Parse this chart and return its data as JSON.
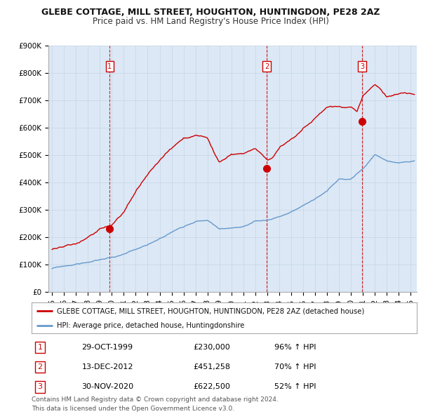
{
  "title": "GLEBE COTTAGE, MILL STREET, HOUGHTON, HUNTINGDON, PE28 2AZ",
  "subtitle": "Price paid vs. HM Land Registry's House Price Index (HPI)",
  "ylim": [
    0,
    900000
  ],
  "yticks": [
    0,
    100000,
    200000,
    300000,
    400000,
    500000,
    600000,
    700000,
    800000,
    900000
  ],
  "ytick_labels": [
    "£0",
    "£100K",
    "£200K",
    "£300K",
    "£400K",
    "£500K",
    "£600K",
    "£700K",
    "£800K",
    "£900K"
  ],
  "xlim_start": 1994.7,
  "xlim_end": 2025.5,
  "x_tick_years": [
    1995,
    1996,
    1997,
    1998,
    1999,
    2000,
    2001,
    2002,
    2003,
    2004,
    2005,
    2006,
    2007,
    2008,
    2009,
    2010,
    2011,
    2012,
    2013,
    2014,
    2015,
    2016,
    2017,
    2018,
    2019,
    2020,
    2021,
    2022,
    2023,
    2024,
    2025
  ],
  "sale_color": "#cc0000",
  "hpi_color": "#6699cc",
  "vline_color": "#cc0000",
  "grid_color": "#c8d8e8",
  "chart_bg": "#dce8f5",
  "background_color": "#ffffff",
  "legend_label_sale": "GLEBE COTTAGE, MILL STREET, HOUGHTON, HUNTINGDON, PE28 2AZ (detached house)",
  "legend_label_hpi": "HPI: Average price, detached house, Huntingdonshire",
  "sales": [
    {
      "year": 1999.83,
      "price": 230000,
      "label": "1"
    },
    {
      "year": 2012.95,
      "price": 451258,
      "label": "2"
    },
    {
      "year": 2020.92,
      "price": 622500,
      "label": "3"
    }
  ],
  "table_rows": [
    {
      "num": "1",
      "date": "29-OCT-1999",
      "price": "£230,000",
      "hpi": "96% ↑ HPI"
    },
    {
      "num": "2",
      "date": "13-DEC-2012",
      "price": "£451,258",
      "hpi": "70% ↑ HPI"
    },
    {
      "num": "3",
      "date": "30-NOV-2020",
      "price": "£622,500",
      "hpi": "52% ↑ HPI"
    }
  ],
  "footer": "Contains HM Land Registry data © Crown copyright and database right 2024.\nThis data is licensed under the Open Government Licence v3.0.",
  "title_fontsize": 9,
  "subtitle_fontsize": 8.5,
  "tick_fontsize": 7.5
}
